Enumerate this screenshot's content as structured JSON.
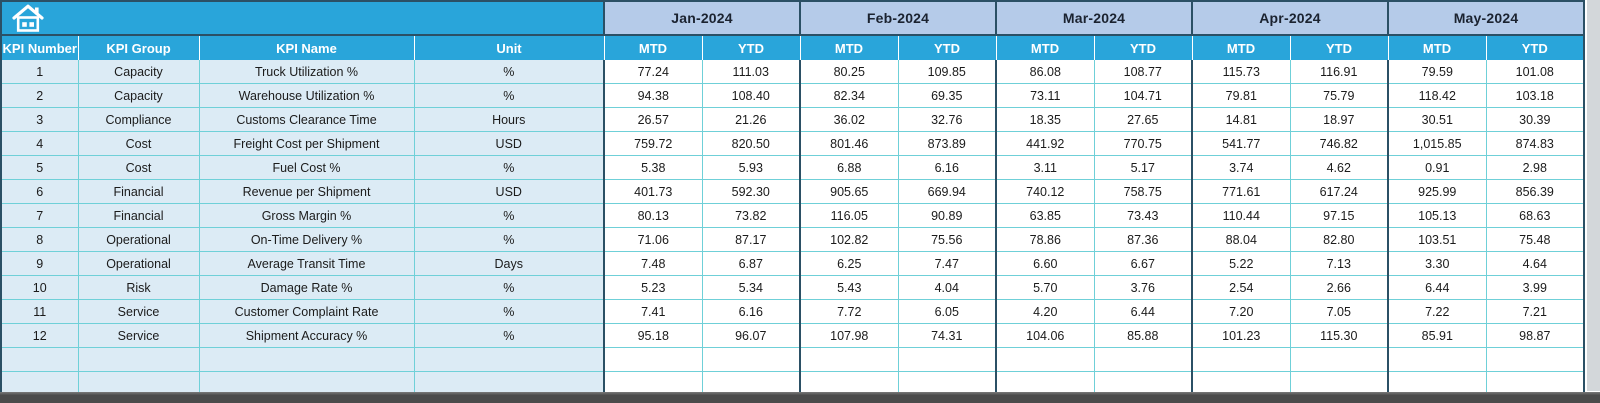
{
  "colors": {
    "header_cyan": "#29a5da",
    "month_band_blue": "#b5cbe9",
    "left_cell_blue": "#dcebf5",
    "border_teal": "#6fd0d8",
    "border_dark": "#2b5065",
    "cell_text": "#1b1b1b",
    "band_text": "#1b2330",
    "bottom_bar_gray": "#4b4b4b",
    "right_strip_gray": "#d3d7da"
  },
  "icons": {
    "home": "home-icon"
  },
  "table": {
    "left_columns": [
      "KPI Number",
      "KPI Group",
      "KPI Name",
      "Unit"
    ],
    "months": [
      "Jan-2024",
      "Feb-2024",
      "Mar-2024",
      "Apr-2024",
      "May-2024"
    ],
    "period_columns": [
      "MTD",
      "YTD"
    ],
    "empty_row_count": 2,
    "rows": [
      {
        "number": "1",
        "group": "Capacity",
        "name": "Truck Utilization %",
        "unit": "%",
        "values": [
          "77.24",
          "111.03",
          "80.25",
          "109.85",
          "86.08",
          "108.77",
          "115.73",
          "116.91",
          "79.59",
          "101.08"
        ]
      },
      {
        "number": "2",
        "group": "Capacity",
        "name": "Warehouse Utilization %",
        "unit": "%",
        "values": [
          "94.38",
          "108.40",
          "82.34",
          "69.35",
          "73.11",
          "104.71",
          "79.81",
          "75.79",
          "118.42",
          "103.18"
        ]
      },
      {
        "number": "3",
        "group": "Compliance",
        "name": "Customs Clearance Time",
        "unit": "Hours",
        "values": [
          "26.57",
          "21.26",
          "36.02",
          "32.76",
          "18.35",
          "27.65",
          "14.81",
          "18.97",
          "30.51",
          "30.39"
        ]
      },
      {
        "number": "4",
        "group": "Cost",
        "name": "Freight Cost per Shipment",
        "unit": "USD",
        "values": [
          "759.72",
          "820.50",
          "801.46",
          "873.89",
          "441.92",
          "770.75",
          "541.77",
          "746.82",
          "1,015.85",
          "874.83"
        ]
      },
      {
        "number": "5",
        "group": "Cost",
        "name": "Fuel Cost %",
        "unit": "%",
        "values": [
          "5.38",
          "5.93",
          "6.88",
          "6.16",
          "3.11",
          "5.17",
          "3.74",
          "4.62",
          "0.91",
          "2.98"
        ]
      },
      {
        "number": "6",
        "group": "Financial",
        "name": "Revenue per Shipment",
        "unit": "USD",
        "values": [
          "401.73",
          "592.30",
          "905.65",
          "669.94",
          "740.12",
          "758.75",
          "771.61",
          "617.24",
          "925.99",
          "856.39"
        ]
      },
      {
        "number": "7",
        "group": "Financial",
        "name": "Gross Margin %",
        "unit": "%",
        "values": [
          "80.13",
          "73.82",
          "116.05",
          "90.89",
          "63.85",
          "73.43",
          "110.44",
          "97.15",
          "105.13",
          "68.63"
        ]
      },
      {
        "number": "8",
        "group": "Operational",
        "name": "On-Time Delivery %",
        "unit": "%",
        "values": [
          "71.06",
          "87.17",
          "102.82",
          "75.56",
          "78.86",
          "87.36",
          "88.04",
          "82.80",
          "103.51",
          "75.48"
        ]
      },
      {
        "number": "9",
        "group": "Operational",
        "name": "Average Transit Time",
        "unit": "Days",
        "values": [
          "7.48",
          "6.87",
          "6.25",
          "7.47",
          "6.60",
          "6.67",
          "5.22",
          "7.13",
          "3.30",
          "4.64"
        ]
      },
      {
        "number": "10",
        "group": "Risk",
        "name": "Damage Rate %",
        "unit": "%",
        "values": [
          "5.23",
          "5.34",
          "5.43",
          "4.04",
          "5.70",
          "3.76",
          "2.54",
          "2.66",
          "6.44",
          "3.99"
        ]
      },
      {
        "number": "11",
        "group": "Service",
        "name": "Customer Complaint Rate",
        "unit": "%",
        "values": [
          "7.41",
          "6.16",
          "7.72",
          "6.05",
          "4.20",
          "6.44",
          "7.20",
          "7.05",
          "7.22",
          "7.21"
        ]
      },
      {
        "number": "12",
        "group": "Service",
        "name": "Shipment Accuracy %",
        "unit": "%",
        "values": [
          "95.18",
          "96.07",
          "107.98",
          "74.31",
          "104.06",
          "85.88",
          "101.23",
          "115.30",
          "85.91",
          "98.87"
        ]
      }
    ]
  }
}
